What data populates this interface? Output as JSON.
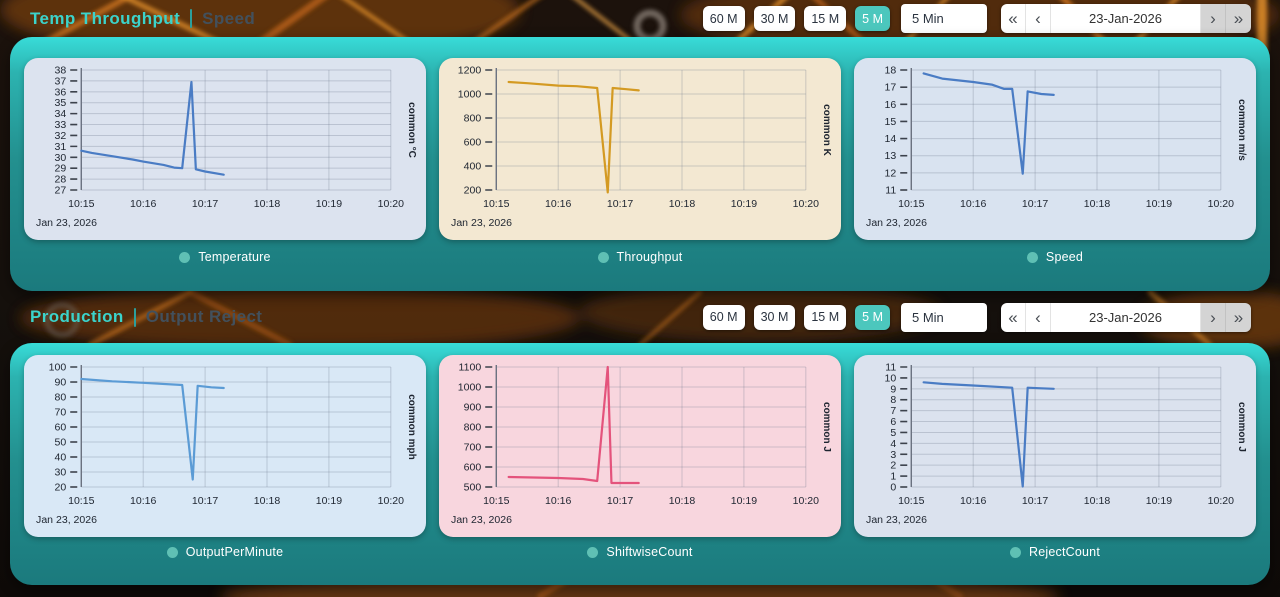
{
  "theme": {
    "accent_teal": "#3bd3cb",
    "secondary_title_color": "#42505c",
    "selected_button_bg": "#4cc7bd",
    "panel_gradient_top": "#38dcd8",
    "panel_gradient_bottom": "#1b7a7d",
    "legend_dot_color": "#5fc0b4"
  },
  "sections": [
    {
      "title_primary": "Temp Throughput",
      "title_secondary": "Speed",
      "toolbar": {
        "buttons": [
          "60 M",
          "30 M",
          "15 M",
          "5 M"
        ],
        "selected": "5 M",
        "interval": "5 Min",
        "nav": {
          "fast_back": "«",
          "back": "‹",
          "date": "23-Jan-2026",
          "forward": "›",
          "fast_forward": "»"
        }
      },
      "charts": [
        0,
        1,
        2
      ]
    },
    {
      "title_primary": "Production",
      "title_secondary": "Output Reject",
      "toolbar": {
        "buttons": [
          "60 M",
          "30 M",
          "15 M",
          "5 M"
        ],
        "selected": "5 M",
        "interval": "5 Min",
        "nav": {
          "fast_back": "«",
          "back": "‹",
          "date": "23-Jan-2026",
          "forward": "›",
          "fast_forward": "»"
        }
      },
      "charts": [
        3,
        4,
        5
      ]
    }
  ],
  "chart_data": [
    {
      "type": "line",
      "title": "Temperature",
      "unit_label": "common °C",
      "color": "#4a7cc4",
      "bg": "#dce3ef",
      "ylim": [
        27,
        38
      ],
      "y_step": 1,
      "x_ticks": [
        "10:15",
        "10:16",
        "10:17",
        "10:18",
        "10:19",
        "10:20"
      ],
      "x_date": "Jan 23, 2026",
      "x": [
        0,
        0.17,
        0.5,
        0.83,
        1.0,
        1.33,
        1.5,
        1.63,
        1.78,
        1.85,
        2.0,
        2.3
      ],
      "y": [
        30.6,
        30.4,
        30.1,
        29.8,
        29.6,
        29.3,
        29.05,
        29.0,
        36.9,
        28.9,
        28.7,
        28.4
      ]
    },
    {
      "type": "line",
      "title": "Throughput",
      "unit_label": "common K",
      "color": "#d49a22",
      "bg": "#f3e8d2",
      "ylim": [
        200,
        1200
      ],
      "y_step": 200,
      "x_ticks": [
        "10:15",
        "10:16",
        "10:17",
        "10:18",
        "10:19",
        "10:20"
      ],
      "x_date": "Jan 23, 2026",
      "x": [
        0.2,
        0.5,
        1.0,
        1.3,
        1.63,
        1.8,
        1.88,
        2.1,
        2.3
      ],
      "y": [
        1100,
        1090,
        1070,
        1065,
        1050,
        180,
        1050,
        1040,
        1030
      ]
    },
    {
      "type": "line",
      "title": "Speed",
      "unit_label": "common m/s",
      "color": "#4a7cc4",
      "bg": "#d9e3f0",
      "ylim": [
        11,
        18
      ],
      "y_step": 1,
      "x_ticks": [
        "10:15",
        "10:16",
        "10:17",
        "10:18",
        "10:19",
        "10:20"
      ],
      "x_date": "Jan 23, 2026",
      "x": [
        0.2,
        0.5,
        1.0,
        1.3,
        1.5,
        1.63,
        1.8,
        1.88,
        2.1,
        2.3
      ],
      "y": [
        17.8,
        17.5,
        17.3,
        17.15,
        16.9,
        16.9,
        11.95,
        16.75,
        16.6,
        16.55
      ]
    },
    {
      "type": "line",
      "title": "OutputPerMinute",
      "unit_label": "common mph",
      "color": "#5b9bd5",
      "bg": "#d9e8f6",
      "ylim": [
        20,
        100
      ],
      "y_step": 10,
      "x_ticks": [
        "10:15",
        "10:16",
        "10:17",
        "10:18",
        "10:19",
        "10:20"
      ],
      "x_date": "Jan 23, 2026",
      "x": [
        0,
        0.5,
        1.0,
        1.63,
        1.8,
        1.88,
        2.1,
        2.3
      ],
      "y": [
        92,
        90.5,
        89.5,
        88,
        25,
        87.5,
        86.5,
        86
      ]
    },
    {
      "type": "line",
      "title": "ShiftwiseCount",
      "unit_label": "common J",
      "color": "#e4537c",
      "bg": "#f8d6de",
      "ylim": [
        500,
        1100
      ],
      "y_step": 100,
      "x_ticks": [
        "10:15",
        "10:16",
        "10:17",
        "10:18",
        "10:19",
        "10:20"
      ],
      "x_date": "Jan 23, 2026",
      "x": [
        0.2,
        0.5,
        1.0,
        1.4,
        1.63,
        1.8,
        1.86,
        2.1,
        2.3
      ],
      "y": [
        550,
        548,
        545,
        540,
        530,
        1100,
        520,
        520,
        520
      ]
    },
    {
      "type": "line",
      "title": "RejectCount",
      "unit_label": "common J",
      "color": "#4a7cc4",
      "bg": "#dbe2ee",
      "ylim": [
        0,
        11
      ],
      "y_step": 1,
      "x_ticks": [
        "10:15",
        "10:16",
        "10:17",
        "10:18",
        "10:19",
        "10:20"
      ],
      "x_date": "Jan 23, 2026",
      "x": [
        0.2,
        0.5,
        1.0,
        1.63,
        1.8,
        1.88,
        2.1,
        2.3
      ],
      "y": [
        9.6,
        9.45,
        9.3,
        9.1,
        0.05,
        9.1,
        9.05,
        9.0
      ]
    }
  ]
}
